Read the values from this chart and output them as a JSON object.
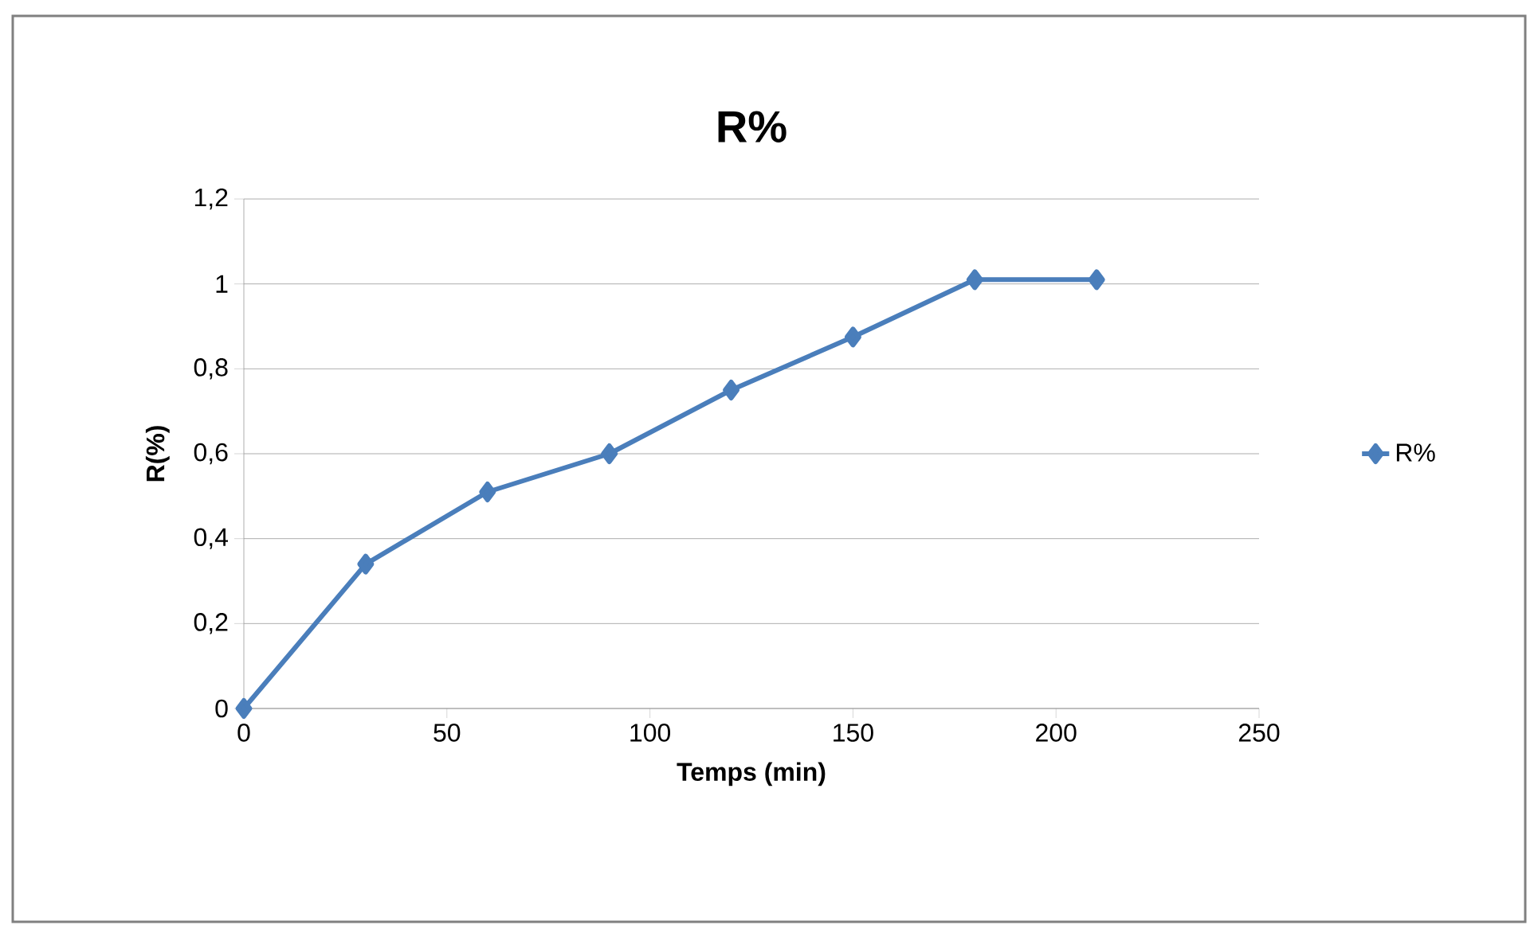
{
  "chart_data": {
    "type": "line",
    "title": "R%",
    "xlabel": "Temps (min)",
    "ylabel": "R(%)",
    "x": [
      0,
      30,
      60,
      90,
      120,
      150,
      180,
      210
    ],
    "series": [
      {
        "name": "R%",
        "color": "#4a7ebb",
        "values": [
          0,
          0.34,
          0.51,
          0.6,
          0.75,
          0.875,
          1.01,
          1.01
        ]
      }
    ],
    "xlim": [
      0,
      250
    ],
    "xticks": [
      0,
      50,
      100,
      150,
      200,
      250
    ],
    "ylim": [
      0,
      1.2
    ],
    "yticks": [
      0,
      {
        "value": 0.2,
        "label": "0,2"
      },
      {
        "value": 0.4,
        "label": "0,4"
      },
      {
        "value": 0.6,
        "label": "0,6"
      },
      {
        "value": 0.8,
        "label": "0,8"
      },
      1,
      {
        "value": 1.2,
        "label": "1,2"
      }
    ],
    "grid": "y",
    "legend": "right",
    "marker": "diamond",
    "line_style": "solid"
  }
}
